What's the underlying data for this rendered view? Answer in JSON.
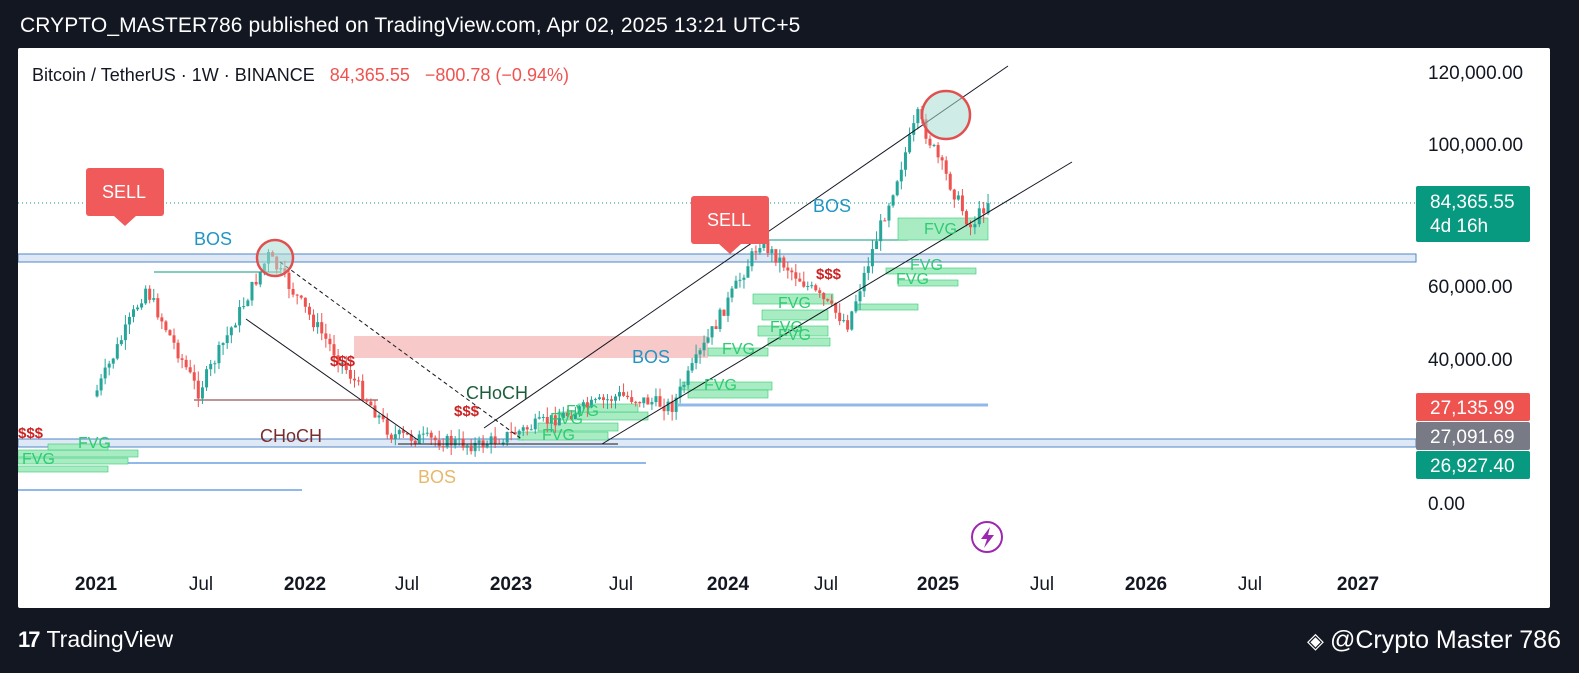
{
  "header": {
    "published_line": "CRYPTO_MASTER786 published on TradingView.com, Apr 02, 2025 13:21 UTC+5"
  },
  "legend": {
    "symbol": "Bitcoin / TetherUS · 1W · BINANCE",
    "last": "84,365.55",
    "change": "−800.78 (−0.94%)"
  },
  "footer": {
    "brand": "TradingView",
    "author": "@Crypto Master 786"
  },
  "colors": {
    "up": "#26a69a",
    "down": "#ef5350",
    "fvg": "#2ecc71",
    "bos": "#2196c4",
    "choch_dark": "#1b5e3b",
    "choch_red": "#7a2d2d",
    "sell": "#f05a5a",
    "purple": "#9c27b0",
    "price_tag": "#089981"
  },
  "chart_data": {
    "type": "candlestick",
    "symbol": "BTCUSDT",
    "exchange": "BINANCE",
    "interval": "1W",
    "ylim": [
      0,
      120000
    ],
    "y_ticks": [
      "120,000.00",
      "100,000.00",
      "60,000.00",
      "40,000.00",
      "0.00"
    ],
    "x_ticks": [
      "2021",
      "Jul",
      "2022",
      "Jul",
      "2023",
      "Jul",
      "2024",
      "Jul",
      "2025",
      "Jul",
      "2026",
      "Jul",
      "2027"
    ],
    "last_price": {
      "value": "84,365.55",
      "countdown": "4d 16h"
    },
    "price_tags": [
      "27,135.99",
      "27,091.69",
      "26,927.40"
    ],
    "key_points": [
      {
        "date": "2021-01",
        "price": 29000
      },
      {
        "date": "2021-04",
        "price": 60000
      },
      {
        "date": "2021-07",
        "price": 31000
      },
      {
        "date": "2021-11",
        "price": 69000
      },
      {
        "date": "2022-06",
        "price": 19000
      },
      {
        "date": "2022-11",
        "price": 16000
      },
      {
        "date": "2023-07",
        "price": 30000
      },
      {
        "date": "2023-10",
        "price": 27000
      },
      {
        "date": "2024-03",
        "price": 73000
      },
      {
        "date": "2024-08",
        "price": 50000
      },
      {
        "date": "2024-12",
        "price": 108000
      },
      {
        "date": "2025-03",
        "price": 77000
      },
      {
        "date": "2025-04",
        "price": 84365
      }
    ],
    "annotations": {
      "sell": [
        "SELL",
        "SELL"
      ],
      "bos": [
        "BOS",
        "BOS",
        "BOS",
        "BOS"
      ],
      "choch": [
        "CHoCH",
        "CHoCH"
      ],
      "liquidity": [
        "$$$",
        "$$$",
        "$$$",
        "$$$"
      ],
      "fvg": "FVG"
    }
  }
}
